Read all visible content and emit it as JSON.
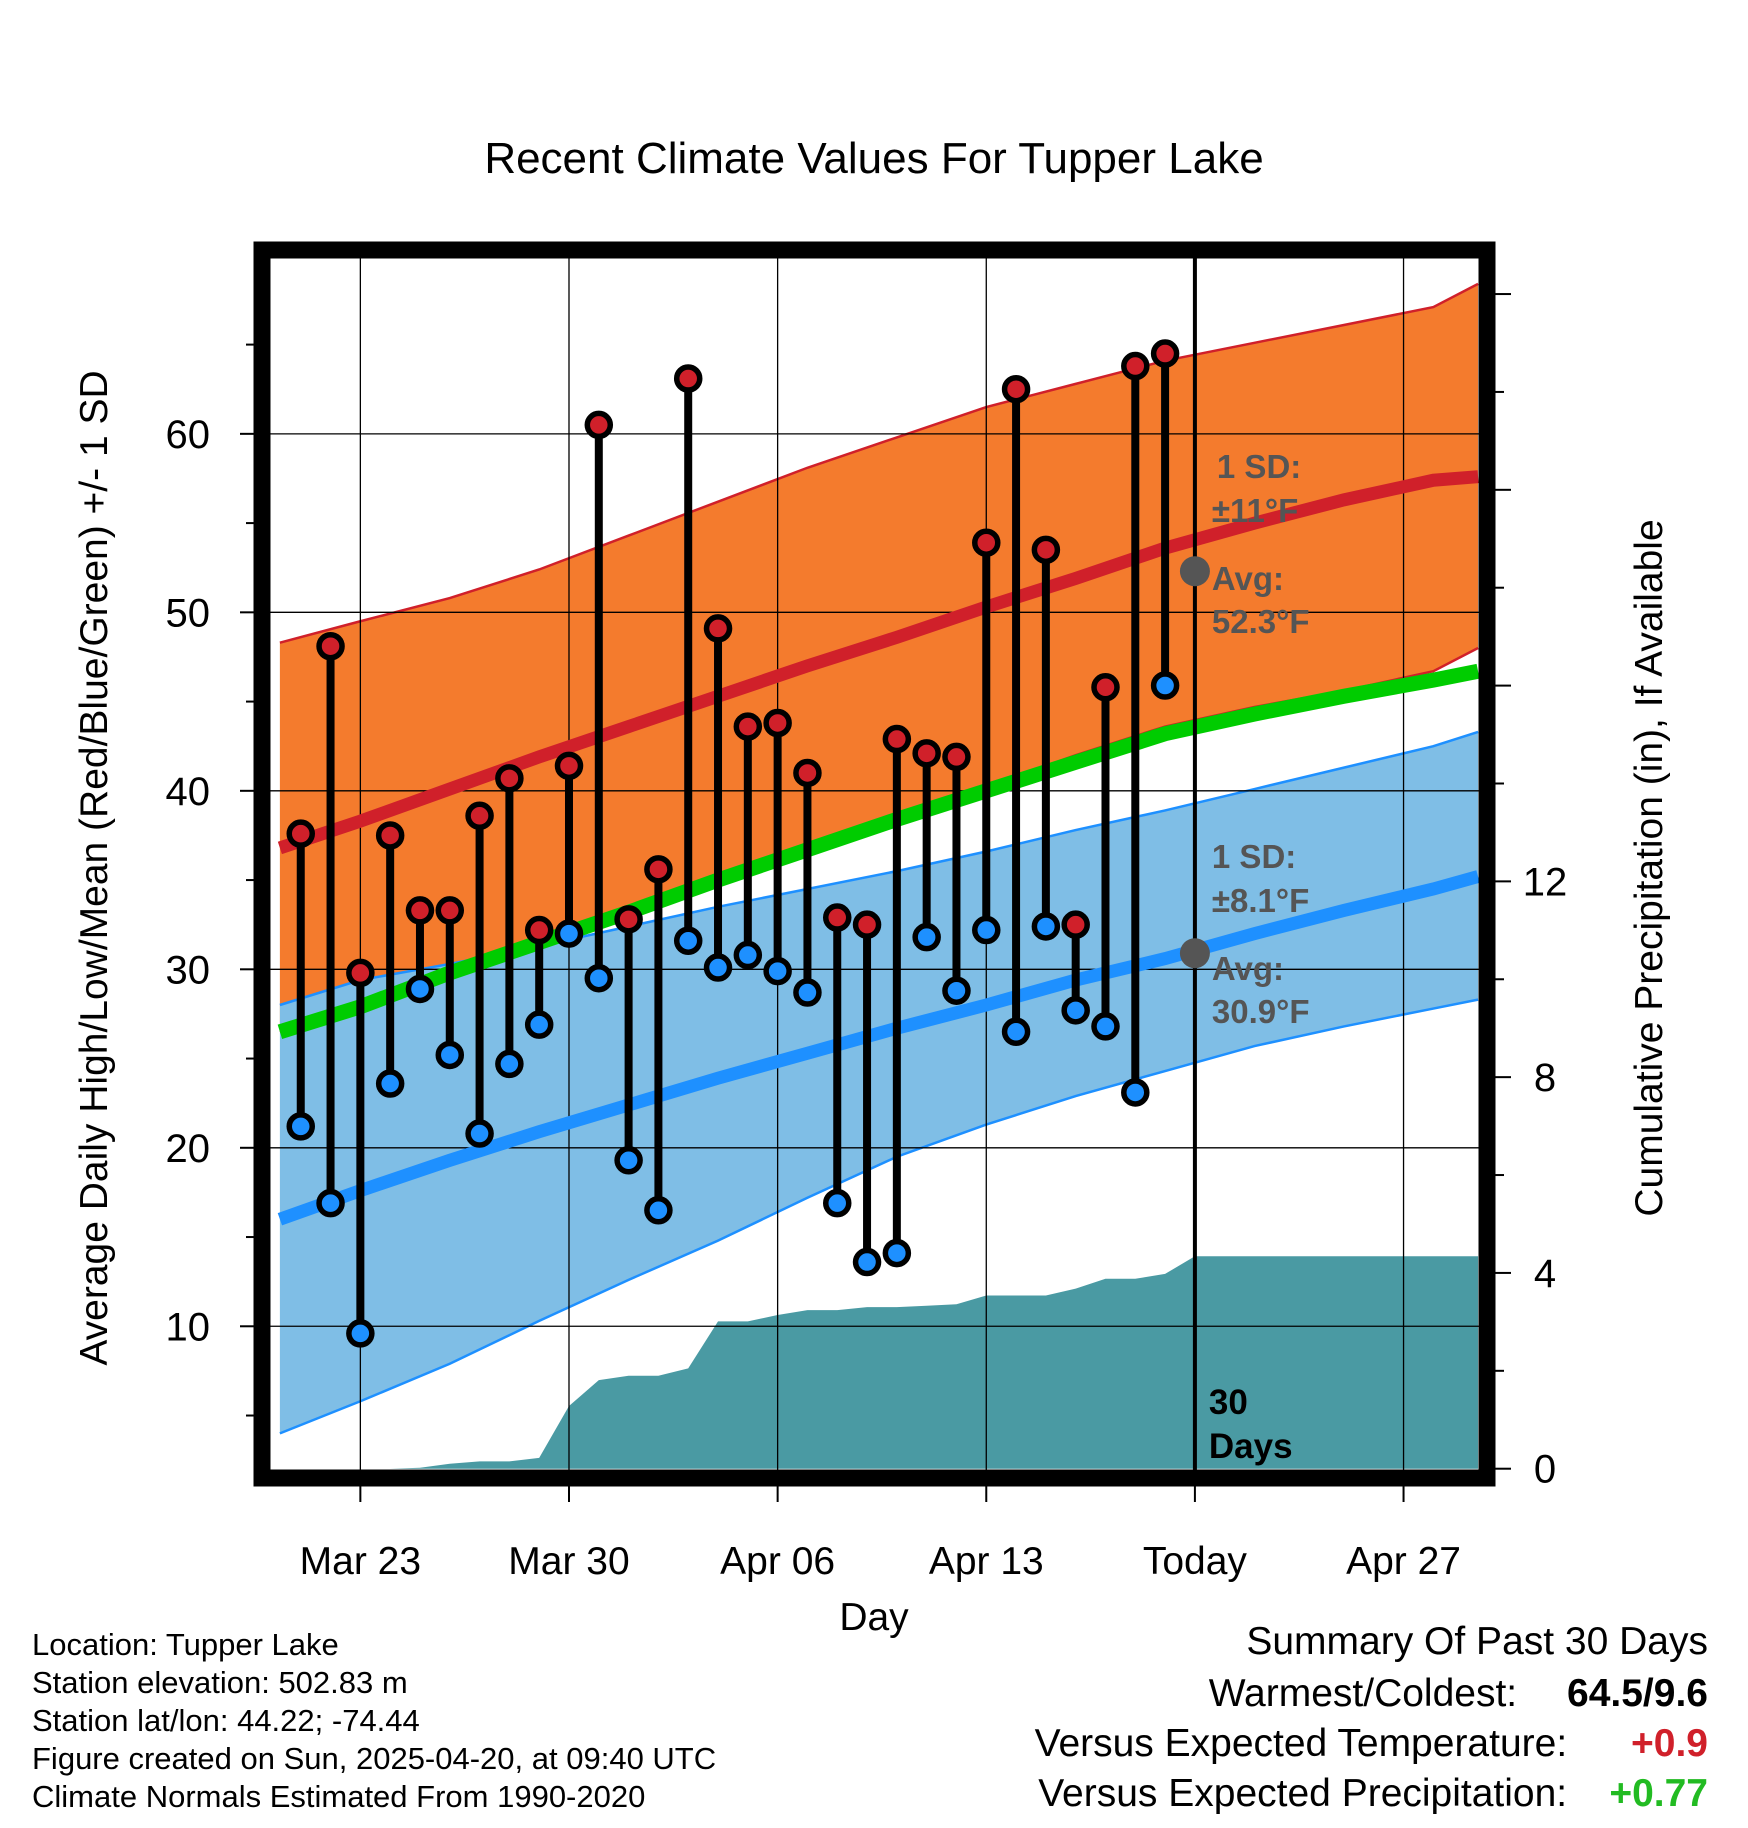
{
  "chart_data": {
    "type": "line",
    "title": "Recent Climate Values For Tupper Lake",
    "xlabel": "Day",
    "ylabel": "Average Daily High/Low/Mean (Red/Blue/Green) +/- 1 SD",
    "y2label": "Cumulative Precipitation (in), If Available",
    "xlim": [
      -3.3,
      37.8
    ],
    "ylim": [
      1.5,
      70.3
    ],
    "y2lim": [
      -0.19,
      24.9
    ],
    "today_index": 27,
    "x_ticks": [
      {
        "day": 0,
        "label": "Mar 23"
      },
      {
        "day": 7,
        "label": "Mar 30"
      },
      {
        "day": 14,
        "label": "Apr 06"
      },
      {
        "day": 21,
        "label": "Apr 13"
      },
      {
        "day": 28,
        "label": "Today"
      },
      {
        "day": 35,
        "label": "Apr 27"
      }
    ],
    "y_ticks": [
      10,
      20,
      30,
      40,
      50,
      60
    ],
    "y2_ticks": [
      0,
      4,
      8,
      12
    ],
    "normals_x": [
      -2.7,
      0,
      3,
      6,
      9,
      12,
      15,
      18,
      21,
      24,
      27,
      30,
      33,
      36,
      37.5
    ],
    "normal_high": [
      36.8,
      38.3,
      40.1,
      41.9,
      43.6,
      45.3,
      47.0,
      48.6,
      50.3,
      51.9,
      53.6,
      55.0,
      56.3,
      57.4,
      57.6
    ],
    "normal_high_sd_upper": [
      48.3,
      49.5,
      50.8,
      52.4,
      54.3,
      56.2,
      58.1,
      59.8,
      61.5,
      62.8,
      64.1,
      65.1,
      66.1,
      67.1,
      68.4
    ],
    "normal_high_sd_lower": [
      26.5,
      27.8,
      29.5,
      31.3,
      33.2,
      35.0,
      36.9,
      38.5,
      40.2,
      42.0,
      43.6,
      44.7,
      45.6,
      46.7,
      48.0
    ],
    "normal_mean": [
      26.5,
      27.9,
      29.8,
      31.5,
      33.2,
      35.0,
      36.7,
      38.4,
      40.0,
      41.6,
      43.2,
      44.3,
      45.3,
      46.2,
      46.7
    ],
    "normal_low": [
      16.0,
      17.6,
      19.3,
      20.9,
      22.4,
      23.9,
      25.3,
      26.7,
      28.0,
      29.4,
      30.6,
      32.0,
      33.3,
      34.5,
      35.2
    ],
    "normal_low_sd_upper": [
      28.0,
      29.4,
      30.3,
      31.3,
      32.4,
      33.5,
      34.5,
      35.5,
      36.6,
      37.8,
      38.9,
      40.1,
      41.3,
      42.5,
      43.3
    ],
    "normal_low_sd_lower": [
      4.0,
      5.8,
      7.9,
      10.3,
      12.6,
      14.8,
      17.2,
      19.5,
      21.3,
      22.9,
      24.3,
      25.7,
      26.8,
      27.8,
      28.3
    ],
    "series": [
      {
        "name": "Observed High",
        "color": "#d0202a",
        "values": [
          37.6,
          48.1,
          29.8,
          37.5,
          33.3,
          33.3,
          38.6,
          40.7,
          32.2,
          41.4,
          60.5,
          32.8,
          35.6,
          63.1,
          49.1,
          43.6,
          43.8,
          41.0,
          32.9,
          32.5,
          42.9,
          42.1,
          41.9,
          53.9,
          62.5,
          53.5,
          32.5,
          45.8,
          63.8,
          64.5
        ]
      },
      {
        "name": "Observed Low",
        "color": "#1e90ff",
        "values": [
          21.2,
          16.9,
          9.6,
          23.6,
          28.9,
          25.2,
          20.8,
          24.7,
          26.9,
          32.0,
          29.5,
          19.3,
          16.5,
          31.6,
          30.1,
          30.8,
          29.9,
          28.7,
          16.9,
          13.6,
          14.1,
          31.8,
          28.8,
          32.2,
          26.5,
          32.4,
          27.7,
          26.8,
          23.1,
          45.9
        ]
      }
    ],
    "precip_x": [
      -3,
      1,
      2,
      3,
      4,
      5,
      6,
      7,
      8,
      9,
      10,
      11,
      12,
      13,
      14,
      15,
      16,
      17,
      18,
      19,
      20,
      21,
      22,
      23,
      24,
      25,
      26,
      27,
      28,
      37.5
    ],
    "precip_cumulative": [
      0,
      0,
      0.02,
      0.1,
      0.15,
      0.15,
      0.22,
      1.28,
      1.81,
      1.9,
      1.9,
      2.05,
      3.01,
      3.01,
      3.14,
      3.24,
      3.24,
      3.3,
      3.3,
      3.33,
      3.36,
      3.54,
      3.54,
      3.54,
      3.68,
      3.88,
      3.88,
      3.98,
      4.34,
      4.34
    ],
    "annotations": {
      "high_sd_label": "1 SD:",
      "high_sd_value": "±11°F",
      "high_avg_label": "Avg:",
      "high_avg_value": "52.3°F",
      "high_avg_y": 52.3,
      "low_sd_label": "1 SD:",
      "low_sd_value": "±8.1°F",
      "low_avg_label": "Avg:",
      "low_avg_value": "30.9°F",
      "low_avg_y": 30.9,
      "days_label_1": "30",
      "days_label_2": "Days"
    },
    "colors": {
      "high_band": "#f47b2d",
      "high_line": "#d0202a",
      "mean_line": "#00cc00",
      "low_band": "#7fbee6",
      "low_line": "#1e90ff",
      "precip": "#4a9aa3",
      "avg_marker": "#555555",
      "annotation_text": "#555555"
    }
  },
  "info": {
    "location": "Location: Tupper Lake",
    "elevation": "Station elevation: 502.83 m",
    "latlon": "Station lat/lon: 44.22; -74.44",
    "created": "Figure created on Sun, 2025-04-20, at 09:40 UTC",
    "normals": "Climate Normals Estimated From 1990-2020"
  },
  "summary": {
    "title": "Summary Of Past 30 Days",
    "warmest_coldest_label": "Warmest/Coldest:",
    "warmest_coldest_value": "64.5/9.6",
    "temp_label": "Versus Expected Temperature:",
    "temp_value": "+0.9",
    "temp_color": "#d0202a",
    "precip_label": "Versus Expected Precipitation:",
    "precip_value": "+0.77",
    "precip_color": "#22bb22"
  }
}
